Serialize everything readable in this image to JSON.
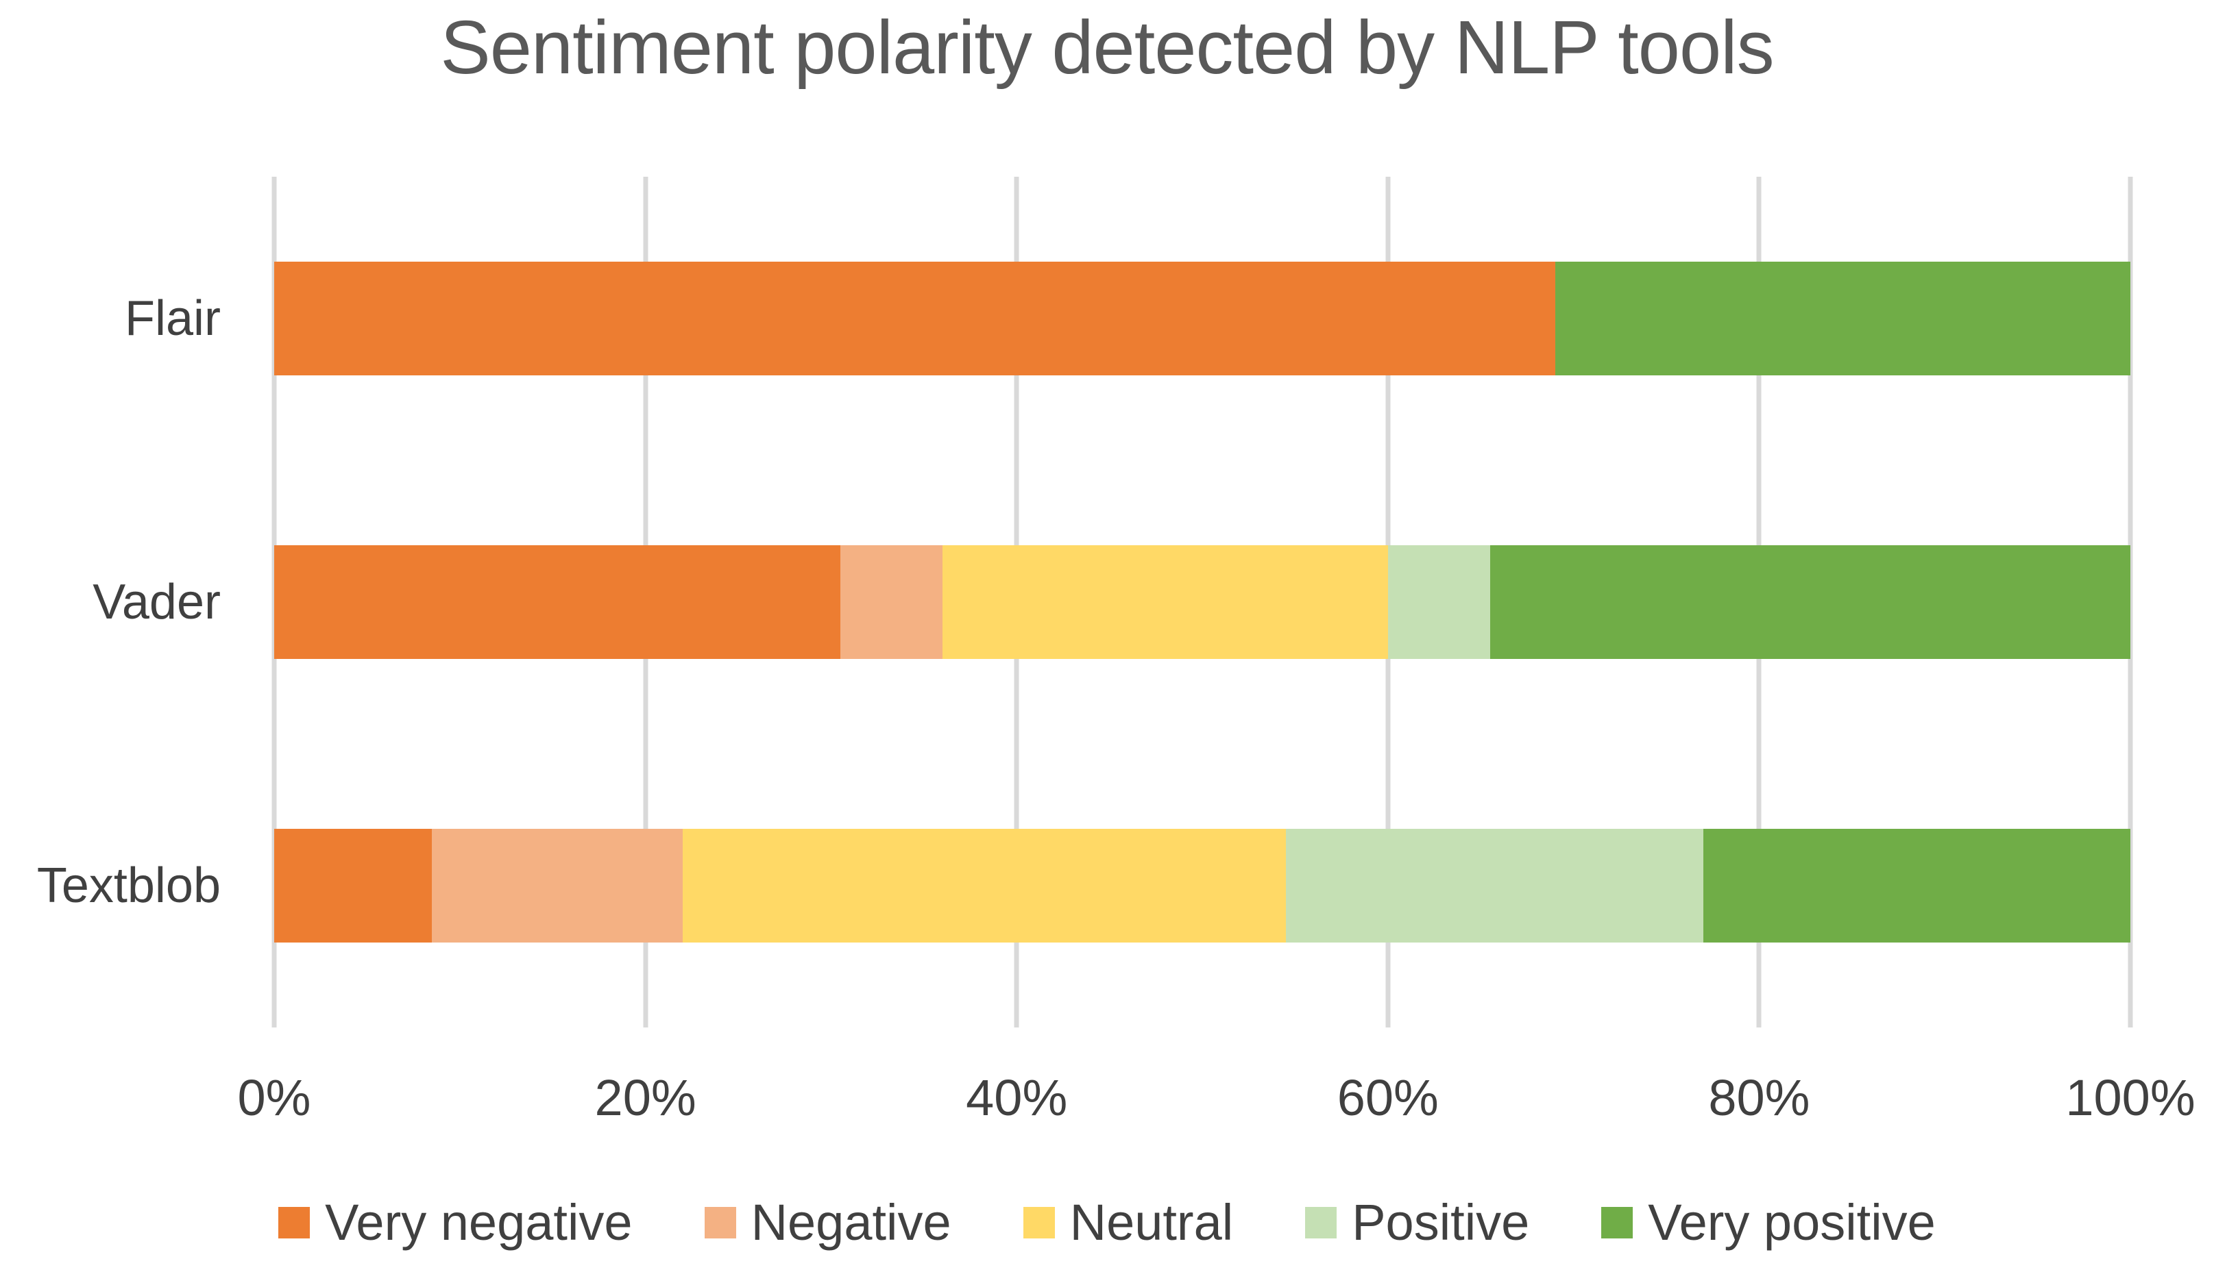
{
  "chart_data": {
    "type": "bar",
    "orientation": "horizontal",
    "stacked": true,
    "units": "percent",
    "title": "Sentiment polarity detected by NLP tools",
    "categories": [
      "Flair",
      "Vader",
      "Textblob"
    ],
    "series": [
      {
        "name": "Very negative",
        "color": "#ED7D31",
        "values": [
          69,
          30.5,
          8.5
        ]
      },
      {
        "name": "Negative",
        "color": "#F4B183",
        "values": [
          0,
          5.5,
          13.5
        ]
      },
      {
        "name": "Neutral",
        "color": "#FFD966",
        "values": [
          0,
          24,
          32.5
        ]
      },
      {
        "name": "Positive",
        "color": "#C5E0B4",
        "values": [
          0,
          5.5,
          22.5
        ]
      },
      {
        "name": "Very positive",
        "color": "#70AD47",
        "values": [
          31,
          34.5,
          23
        ]
      }
    ],
    "x_axis": {
      "ticks": [
        "0%",
        "20%",
        "40%",
        "60%",
        "80%",
        "100%"
      ],
      "range": [
        0,
        100
      ]
    },
    "grid": "vertical-only",
    "legend_position": "bottom-center",
    "style_colors": {
      "gridline": "#D9D9D9",
      "axis_text": "#404040",
      "title_text": "#595959",
      "background": "#FFFFFF"
    }
  }
}
